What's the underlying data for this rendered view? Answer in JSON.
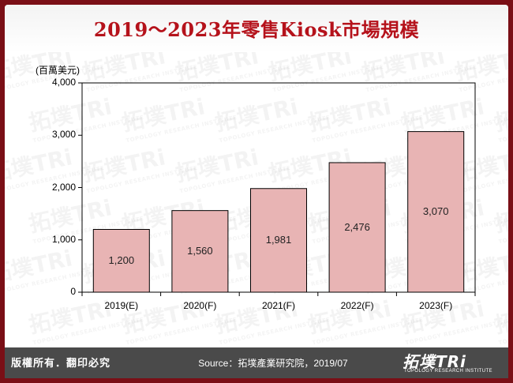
{
  "title": "2019～2023年零售Kiosk市場規模",
  "chart_data": {
    "type": "bar",
    "unit_label": "(百萬美元)",
    "categories": [
      "2019(E)",
      "2020(F)",
      "2021(F)",
      "2022(F)",
      "2023(F)"
    ],
    "values": [
      1200,
      1560,
      1981,
      2476,
      3070
    ],
    "value_labels": [
      "1,200",
      "1,560",
      "1,981",
      "2,476",
      "3,070"
    ],
    "ylim": [
      0,
      4000
    ],
    "yticks": [
      0,
      1000,
      2000,
      3000,
      4000
    ],
    "ytick_labels": [
      "0",
      "1,000",
      "2,000",
      "3,000",
      "4,000"
    ],
    "grid": false,
    "bar_color": "#e8b4b4",
    "bar_border_color": "#000000"
  },
  "footer": {
    "rights": "版權所有．翻印必究",
    "source": "Source：拓墣產業研究院，2019/07",
    "logo_text": "拓墣TRi",
    "logo_subtext": "TOPOLOGY RESEARCH INSTITUTE"
  },
  "watermark_text": "拓墣TRi",
  "watermark_subtext": "TOPOLOGY RESEARCH INSTITUTE",
  "colors": {
    "frame": "#7a0f16",
    "title": "#b5121b",
    "footer": "#4a4a4a"
  }
}
